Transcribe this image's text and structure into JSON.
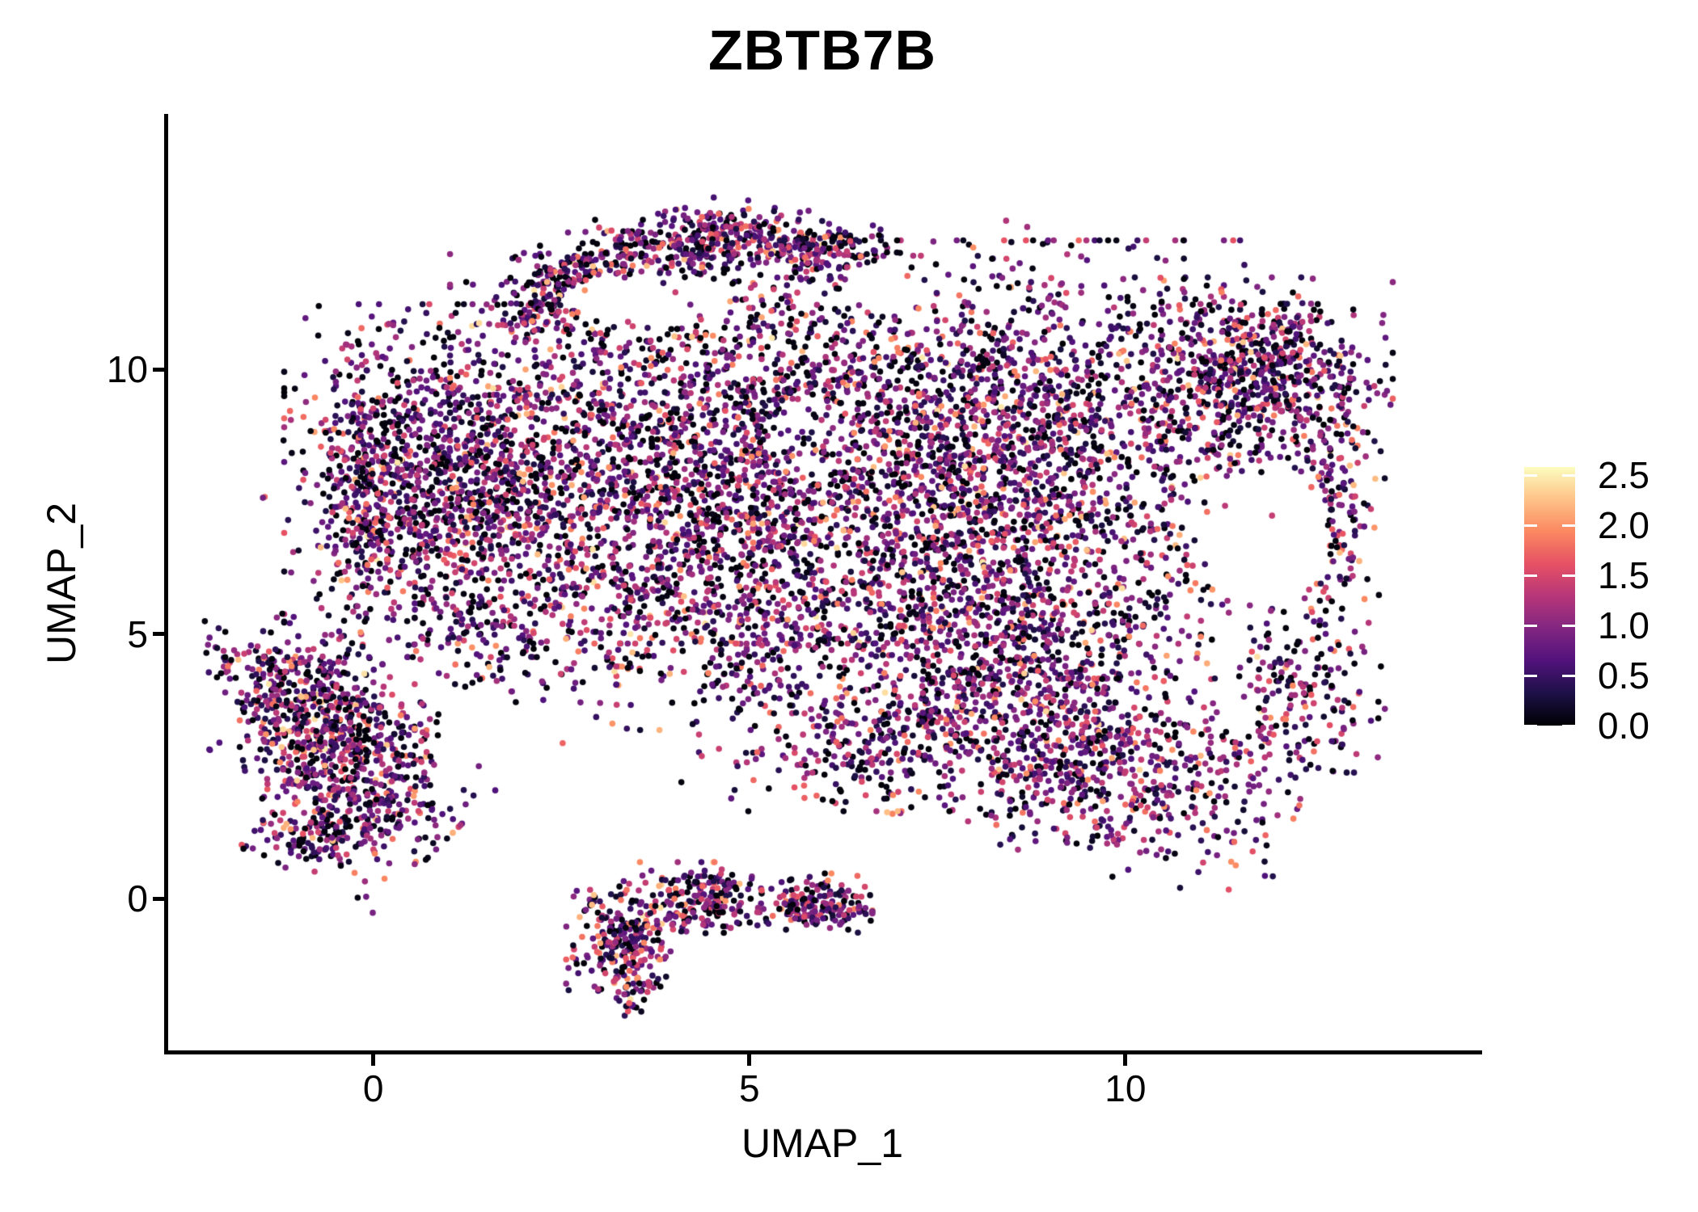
{
  "title": "ZBTB7B",
  "axes": {
    "x": {
      "label": "UMAP_1",
      "ticks": [
        "0",
        "5",
        "10"
      ],
      "tick_values": [
        0,
        5,
        10
      ]
    },
    "y": {
      "label": "UMAP_2",
      "ticks": [
        "0",
        "5",
        "10"
      ],
      "tick_values": [
        0,
        5,
        10
      ]
    }
  },
  "legend": {
    "ticks": [
      "2.5",
      "2.0",
      "1.5",
      "1.0",
      "0.5",
      "0.0"
    ],
    "tick_values": [
      2.5,
      2.0,
      1.5,
      1.0,
      0.5,
      0.0
    ],
    "bar_range": [
      0,
      2.58
    ],
    "colormap_name": "magma"
  },
  "chart_data": {
    "type": "scatter",
    "title": "ZBTB7B",
    "xlabel": "UMAP_1",
    "ylabel": "UMAP_2",
    "xlim": [
      -2.76,
      14.7
    ],
    "ylim": [
      -2.9,
      14.8
    ],
    "x_ticks": [
      0,
      5,
      10
    ],
    "y_ticks": [
      0,
      5,
      10
    ],
    "grid": false,
    "legend_position": "right",
    "point_radius_px": 3.8,
    "seed": 1337,
    "value_max": 2.58,
    "colormap": [
      [
        0.0,
        "#000004"
      ],
      [
        0.125,
        "#1d1147"
      ],
      [
        0.25,
        "#51127c"
      ],
      [
        0.375,
        "#822681"
      ],
      [
        0.5,
        "#b63679"
      ],
      [
        0.625,
        "#e65164"
      ],
      [
        0.75,
        "#fb8861"
      ],
      [
        0.875,
        "#fec287"
      ],
      [
        1.0,
        "#fcfdbf"
      ]
    ],
    "value_distribution": [
      {
        "upto": 0.08,
        "w": 0.21
      },
      {
        "upto": 0.5,
        "w": 0.19
      },
      {
        "upto": 1.0,
        "w": 0.28
      },
      {
        "upto": 1.5,
        "w": 0.2
      },
      {
        "upto": 2.0,
        "w": 0.09
      },
      {
        "upto": 2.3,
        "w": 0.024
      },
      {
        "upto": 2.5,
        "w": 0.006
      }
    ],
    "clusters": [
      {
        "name": "cap-arc-left",
        "shape": "gauss",
        "cx": 2.55,
        "cy": 11.6,
        "rx": 0.5,
        "ry": 0.38,
        "rot": -25,
        "n": 280
      },
      {
        "name": "cap-arc-mid",
        "shape": "gauss",
        "cx": 4.15,
        "cy": 12.4,
        "rx": 0.55,
        "ry": 0.28,
        "rot": -10,
        "n": 240,
        "bias": 1.05
      },
      {
        "name": "cap-arc-right",
        "shape": "gauss",
        "cx": 5.8,
        "cy": 12.3,
        "rx": 0.6,
        "ry": 0.3,
        "rot": 8,
        "n": 260,
        "bias": 1.05
      },
      {
        "name": "cap-fill",
        "shape": "uniform",
        "cx": 4.3,
        "cy": 10.9,
        "rx": 2.1,
        "ry": 1.0,
        "rot": 0,
        "n": 100
      },
      {
        "name": "main-left",
        "shape": "gauss",
        "cx": 1.0,
        "cy": 7.9,
        "rx": 0.95,
        "ry": 1.45,
        "rot": 0,
        "n": 1250
      },
      {
        "name": "main-left-edge",
        "shape": "gauss",
        "cx": -0.15,
        "cy": 7.6,
        "rx": 0.26,
        "ry": 1.25,
        "rot": 0,
        "n": 230
      },
      {
        "name": "main-center",
        "shape": "gauss",
        "cx": 4.7,
        "cy": 8.5,
        "rx": 1.6,
        "ry": 1.6,
        "rot": 0,
        "n": 1900
      },
      {
        "name": "main-center-south",
        "shape": "gauss",
        "cx": 4.0,
        "cy": 5.6,
        "rx": 1.5,
        "ry": 1.05,
        "rot": 0,
        "n": 650
      },
      {
        "name": "main-right",
        "shape": "gauss",
        "cx": 8.5,
        "cy": 8.3,
        "rx": 1.5,
        "ry": 1.8,
        "rot": 0,
        "n": 1950,
        "bias": 1.08
      },
      {
        "name": "main-right-south",
        "shape": "gauss",
        "cx": 8.2,
        "cy": 5.3,
        "rx": 1.6,
        "ry": 0.85,
        "rot": 0,
        "n": 550
      },
      {
        "name": "east-bump",
        "shape": "gauss",
        "cx": 11.6,
        "cy": 9.9,
        "rx": 0.85,
        "ry": 0.8,
        "rot": 0,
        "n": 720
      },
      {
        "name": "east-tip-rim",
        "shape": "gauss",
        "cx": 12.75,
        "cy": 7.1,
        "rx": 0.28,
        "ry": 1.25,
        "rot": 0,
        "n": 200
      },
      {
        "name": "se-lobe",
        "shape": "gauss",
        "cx": 9.3,
        "cy": 2.9,
        "rx": 1.35,
        "ry": 0.95,
        "rot": 16,
        "n": 950,
        "bias": 1.12
      },
      {
        "name": "se-bridge",
        "shape": "gauss",
        "cx": 6.4,
        "cy": 2.8,
        "rx": 0.9,
        "ry": 0.5,
        "rot": 0,
        "n": 200
      },
      {
        "name": "se-east",
        "shape": "gauss",
        "cx": 12.3,
        "cy": 3.6,
        "rx": 0.5,
        "ry": 0.8,
        "rot": 0,
        "n": 170
      },
      {
        "name": "sw-cluster",
        "shape": "gauss",
        "cx": -0.45,
        "cy": 2.8,
        "rx": 0.8,
        "ry": 0.75,
        "rot": 45,
        "n": 850,
        "bias": 1.08
      },
      {
        "name": "sw-spur",
        "shape": "gauss",
        "cx": -1.45,
        "cy": 4.4,
        "rx": 0.45,
        "ry": 0.35,
        "rot": 30,
        "n": 90
      },
      {
        "name": "sw-south",
        "shape": "gauss",
        "cx": -0.6,
        "cy": 1.2,
        "rx": 0.5,
        "ry": 0.3,
        "rot": 0,
        "n": 130
      },
      {
        "name": "w-bridge",
        "shape": "uniform",
        "cx": 1.3,
        "cy": 4.9,
        "rx": 0.8,
        "ry": 0.9,
        "rot": 0,
        "n": 60
      },
      {
        "name": "tail-a",
        "shape": "gauss",
        "cx": 3.3,
        "cy": -0.8,
        "rx": 0.32,
        "ry": 0.42,
        "rot": 0,
        "n": 200,
        "bias": 1.1
      },
      {
        "name": "tail-a2",
        "shape": "gauss",
        "cx": 3.45,
        "cy": -1.7,
        "rx": 0.2,
        "ry": 0.25,
        "rot": 0,
        "n": 50
      },
      {
        "name": "tail-b",
        "shape": "gauss",
        "cx": 4.35,
        "cy": 0.0,
        "rx": 0.35,
        "ry": 0.3,
        "rot": 0,
        "n": 170
      },
      {
        "name": "tail-c",
        "shape": "gauss",
        "cx": 5.9,
        "cy": -0.1,
        "rx": 0.32,
        "ry": 0.25,
        "rot": 0,
        "n": 140
      },
      {
        "name": "tail-line",
        "shape": "uniform",
        "cx": 4.6,
        "cy": -0.1,
        "rx": 2.2,
        "ry": 0.55,
        "rot": 0,
        "n": 90
      },
      {
        "name": "mid-gap-fill",
        "shape": "uniform",
        "cx": 6.8,
        "cy": 4.2,
        "rx": 2.5,
        "ry": 1.1,
        "rot": 0,
        "n": 150
      },
      {
        "name": "halo",
        "shape": "uniform",
        "cx": 6.0,
        "cy": 7.6,
        "rx": 7.5,
        "ry": 5.7,
        "rot": 0,
        "n": 180
      }
    ],
    "holes": [
      {
        "cx": 11.9,
        "cy": 6.9,
        "rx": 0.85,
        "ry": 1.35,
        "keep": 0.05
      },
      {
        "cx": 5.8,
        "cy": 8.7,
        "rx": 0.55,
        "ry": 0.8,
        "keep": 0.3
      },
      {
        "cx": 3.6,
        "cy": 11.35,
        "rx": 1.1,
        "ry": 0.45,
        "keep": 0.1
      },
      {
        "cx": 6.9,
        "cy": 11.6,
        "rx": 0.6,
        "ry": 0.5,
        "keep": 0.15
      }
    ]
  }
}
